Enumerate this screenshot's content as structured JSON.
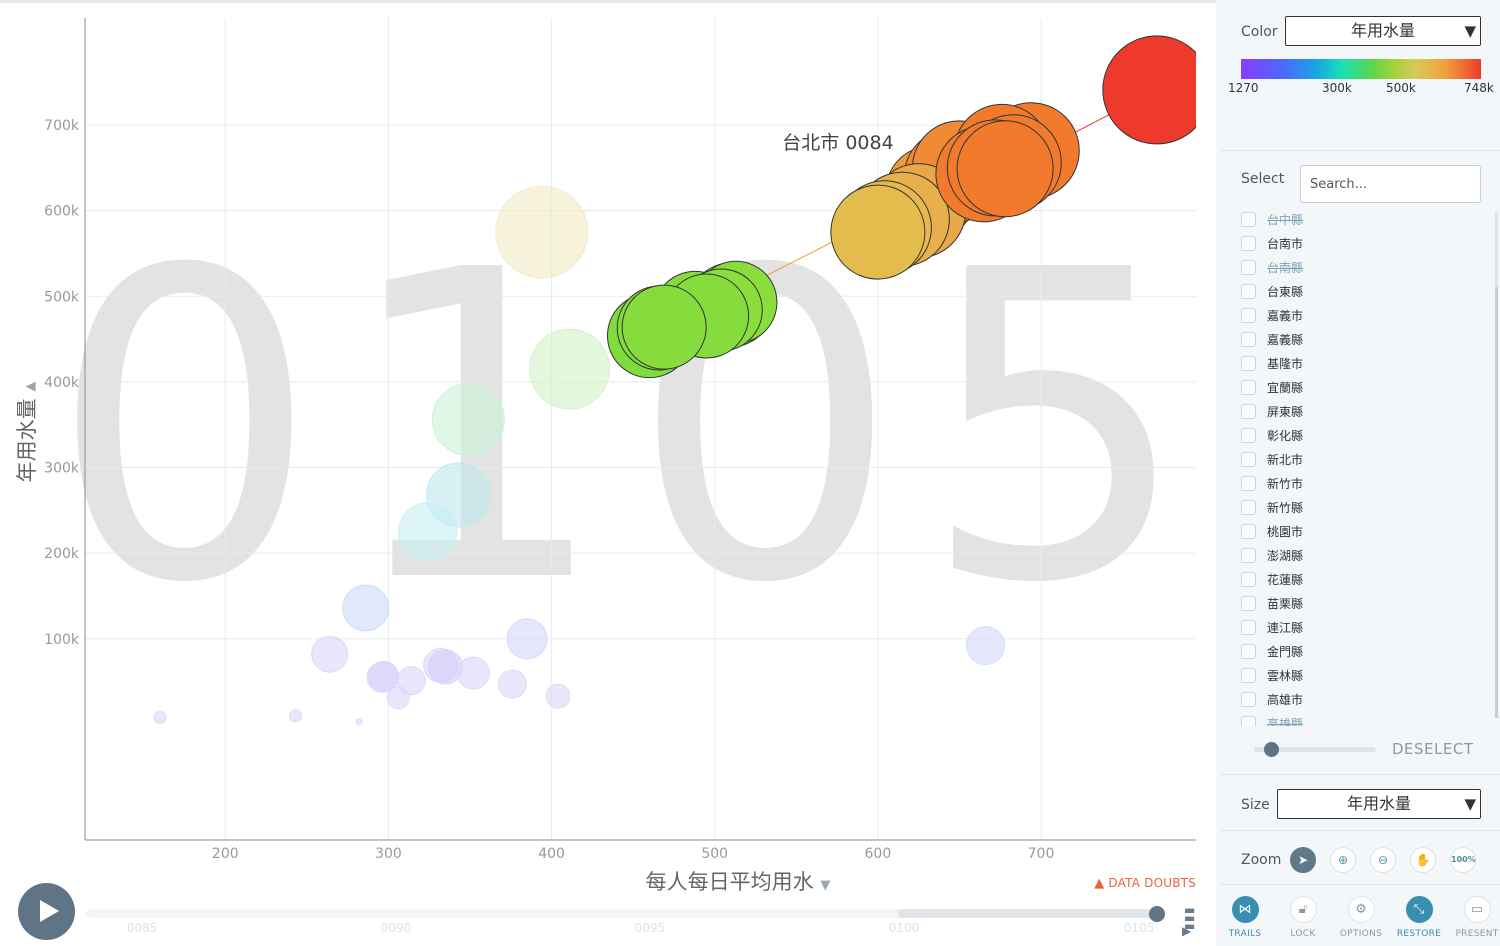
{
  "chart_data": {
    "type": "scatter",
    "title": "",
    "xlabel": "每人每日平均用水",
    "ylabel": "年用水量",
    "xlim": [
      114,
      795
    ],
    "ylim": [
      -135000,
      825000
    ],
    "xticks": [
      200,
      300,
      400,
      500,
      600,
      700
    ],
    "yticks": [
      100000,
      200000,
      300000,
      400000,
      500000,
      600000,
      700000
    ],
    "ytick_labels": [
      "100k",
      "200k",
      "300k",
      "400k",
      "500k",
      "600k",
      "700k"
    ],
    "grid": true,
    "year_watermark": "0105",
    "tooltip_label": "台北市 0084",
    "trail": {
      "name": "台北市",
      "points": [
        {
          "x": 460,
          "y": 454000,
          "r": 42,
          "color": "#7fdc3c"
        },
        {
          "x": 466,
          "y": 463000,
          "r": 42,
          "color": "#82dc3c"
        },
        {
          "x": 488,
          "y": 480000,
          "r": 42,
          "color": "#84dc3c"
        },
        {
          "x": 510,
          "y": 490000,
          "r": 42,
          "color": "#8ade3c"
        },
        {
          "x": 513,
          "y": 493000,
          "r": 41,
          "color": "#8ade3c"
        },
        {
          "x": 504,
          "y": 484000,
          "r": 41,
          "color": "#8ade3c"
        },
        {
          "x": 495,
          "y": 477000,
          "r": 42,
          "color": "#86dc3c"
        },
        {
          "x": 469,
          "y": 464000,
          "r": 42,
          "color": "#86dc3c"
        },
        {
          "x": 633,
          "y": 622000,
          "r": 46,
          "color": "#f09a38"
        },
        {
          "x": 645,
          "y": 640000,
          "r": 47,
          "color": "#f08a34"
        },
        {
          "x": 654,
          "y": 648000,
          "r": 47,
          "color": "#f08a34"
        },
        {
          "x": 650,
          "y": 650000,
          "r": 47,
          "color": "#f08a34"
        },
        {
          "x": 694,
          "y": 670000,
          "r": 48,
          "color": "#f27a2c"
        },
        {
          "x": 676,
          "y": 668000,
          "r": 48,
          "color": "#f27a2c"
        },
        {
          "x": 683,
          "y": 656000,
          "r": 48,
          "color": "#f27a2c"
        },
        {
          "x": 625,
          "y": 600000,
          "r": 47,
          "color": "#e8a848"
        },
        {
          "x": 615,
          "y": 590000,
          "r": 47,
          "color": "#e8b04c"
        },
        {
          "x": 604,
          "y": 580000,
          "r": 47,
          "color": "#e6b84e"
        },
        {
          "x": 600,
          "y": 575000,
          "r": 47,
          "color": "#e4bc4e"
        },
        {
          "x": 665,
          "y": 643000,
          "r": 48,
          "color": "#f27a2c"
        },
        {
          "x": 672,
          "y": 650000,
          "r": 48,
          "color": "#f27a2c"
        },
        {
          "x": 678,
          "y": 649000,
          "r": 48,
          "color": "#f27a2c"
        },
        {
          "x": 771,
          "y": 741000,
          "r": 54,
          "color": "#ee3a2c"
        }
      ]
    },
    "series": [
      {
        "x": 394,
        "y": 575000,
        "r": 46,
        "color": "#f2e9c4"
      },
      {
        "x": 411,
        "y": 415000,
        "r": 40,
        "color": "#d2f2c4"
      },
      {
        "x": 349,
        "y": 356000,
        "r": 36,
        "color": "#c8f2d6"
      },
      {
        "x": 343,
        "y": 268000,
        "r": 32,
        "color": "#bfe8ec"
      },
      {
        "x": 324,
        "y": 225000,
        "r": 29,
        "color": "#c6eef2"
      },
      {
        "x": 286,
        "y": 136000,
        "r": 23,
        "color": "#cfd8fa"
      },
      {
        "x": 385,
        "y": 100000,
        "r": 20,
        "color": "#d4d8fa"
      },
      {
        "x": 666,
        "y": 92000,
        "r": 19,
        "color": "#d4d8fa"
      },
      {
        "x": 264,
        "y": 82000,
        "r": 18,
        "color": "#dcd6fa"
      },
      {
        "x": 332,
        "y": 69000,
        "r": 17,
        "color": "#dcd6fa"
      },
      {
        "x": 335,
        "y": 67000,
        "r": 17,
        "color": "#d6ccf8"
      },
      {
        "x": 352,
        "y": 60000,
        "r": 16,
        "color": "#dcd6fa"
      },
      {
        "x": 297,
        "y": 56000,
        "r": 15,
        "color": "#d6ccf8"
      },
      {
        "x": 296,
        "y": 55000,
        "r": 15,
        "color": "#dcd6fa"
      },
      {
        "x": 314,
        "y": 51000,
        "r": 14,
        "color": "#dcd6fa"
      },
      {
        "x": 376,
        "y": 47000,
        "r": 14,
        "color": "#dcd6fa"
      },
      {
        "x": 404,
        "y": 33000,
        "r": 12,
        "color": "#dcd6fa"
      },
      {
        "x": 306,
        "y": 31000,
        "r": 11,
        "color": "#dcd6fa"
      },
      {
        "x": 243,
        "y": 10000,
        "r": 6,
        "color": "#dcd6fa"
      },
      {
        "x": 160,
        "y": 8000,
        "r": 6,
        "color": "#dcd6fa"
      },
      {
        "x": 282,
        "y": 3000,
        "r": 3,
        "color": "#dcd6fa"
      }
    ]
  },
  "labels": {
    "data_doubts": "DATA DOUBTS",
    "warning_icon": "warning-icon"
  },
  "timeline": {
    "labels": [
      "0085",
      "0090",
      "0095",
      "0100",
      "0105"
    ],
    "current": "0105"
  },
  "sidebar": {
    "color_label": "Color",
    "color_value": "年用水量",
    "color_scale": [
      "1270",
      "300k",
      "500k",
      "748k"
    ],
    "select_label": "Select",
    "search_placeholder": "Search...",
    "items": [
      {
        "name": "台中縣",
        "faded": true
      },
      {
        "name": "台南市",
        "faded": false
      },
      {
        "name": "台南縣",
        "faded": true
      },
      {
        "name": "台東縣",
        "faded": false
      },
      {
        "name": "嘉義市",
        "faded": false
      },
      {
        "name": "嘉義縣",
        "faded": false
      },
      {
        "name": "基隆市",
        "faded": false
      },
      {
        "name": "宜蘭縣",
        "faded": false
      },
      {
        "name": "屏東縣",
        "faded": false
      },
      {
        "name": "彰化縣",
        "faded": false
      },
      {
        "name": "新北市",
        "faded": false
      },
      {
        "name": "新竹市",
        "faded": false
      },
      {
        "name": "新竹縣",
        "faded": false
      },
      {
        "name": "桃園市",
        "faded": false
      },
      {
        "name": "澎湖縣",
        "faded": false
      },
      {
        "name": "花蓮縣",
        "faded": false
      },
      {
        "name": "苗栗縣",
        "faded": false
      },
      {
        "name": "連江縣",
        "faded": false
      },
      {
        "name": "金門縣",
        "faded": false
      },
      {
        "name": "雲林縣",
        "faded": false
      },
      {
        "name": "高雄市",
        "faded": false
      },
      {
        "name": "高雄縣",
        "faded": true
      }
    ],
    "deselect": "DESELECT",
    "size_label": "Size",
    "size_value": "年用水量",
    "zoom_label": "Zoom",
    "zoom_pct": "100%",
    "tools": [
      "TRAILS",
      "LOCK",
      "OPTIONS",
      "RESTORE",
      "PRESENT"
    ]
  }
}
